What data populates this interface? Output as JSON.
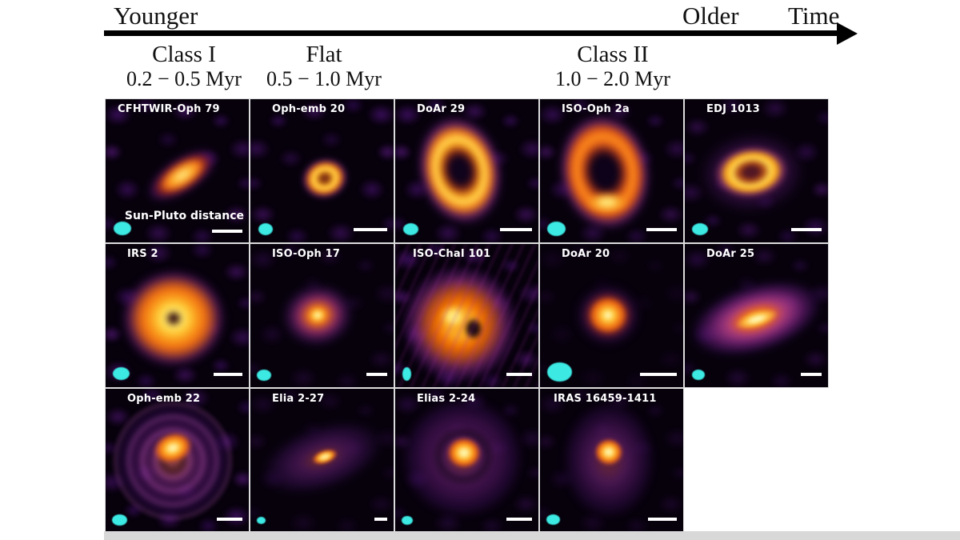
{
  "figure": {
    "timeline": {
      "left_label": "Younger",
      "right_label": "Older",
      "axis_label": "Time"
    },
    "classes": [
      {
        "name": "Class I",
        "age_range": "0.2 − 0.5 Myr"
      },
      {
        "name": "Flat",
        "age_range": "0.5 − 1.0 Myr"
      },
      {
        "name": "Class II",
        "age_range": "1.0 − 2.0 Myr"
      }
    ],
    "scale_annotation": "Sun-Pluto distance",
    "panels": [
      {
        "name": "CFHTWIR-Oph 79",
        "row": 1,
        "morphology": "compact inclined disk"
      },
      {
        "name": "Oph-emb 20",
        "row": 1,
        "morphology": "small ring"
      },
      {
        "name": "DoAr 29",
        "row": 1,
        "morphology": "large bright ring"
      },
      {
        "name": "ISO-Oph 2a",
        "row": 1,
        "morphology": "large clumpy ring"
      },
      {
        "name": "EDJ 1013",
        "row": 1,
        "morphology": "ring"
      },
      {
        "name": "IRS 2",
        "row": 2,
        "morphology": "bright ring with halo"
      },
      {
        "name": "ISO-Oph 17",
        "row": 2,
        "morphology": "compact disk"
      },
      {
        "name": "ISO-ChaI 101",
        "row": 2,
        "morphology": "noisy extended disk"
      },
      {
        "name": "DoAr 20",
        "row": 2,
        "morphology": "compact disk"
      },
      {
        "name": "DoAr 25",
        "row": 2,
        "morphology": "large inclined disk"
      },
      {
        "name": "Oph-emb 22",
        "row": 3,
        "morphology": "disk with concentric rings"
      },
      {
        "name": "Elia 2-27",
        "row": 3,
        "morphology": "inclined disk with faint arms"
      },
      {
        "name": "Elias 2-24",
        "row": 3,
        "morphology": "disk with gap"
      },
      {
        "name": "IRAS 16459-1411",
        "row": 3,
        "morphology": "compact disk with envelope"
      }
    ]
  },
  "colors": {
    "background": "#ffffff",
    "arrow": "#000000",
    "header_text": "#111111",
    "panel_background": "#07010c",
    "panel_label": "#ffffff",
    "beam": "#3ce9e3",
    "scalebar": "#ffffff",
    "colormap_core": "#ffdd55",
    "colormap_mid": "#f57f17",
    "colormap_outer": "#6e1e96"
  }
}
